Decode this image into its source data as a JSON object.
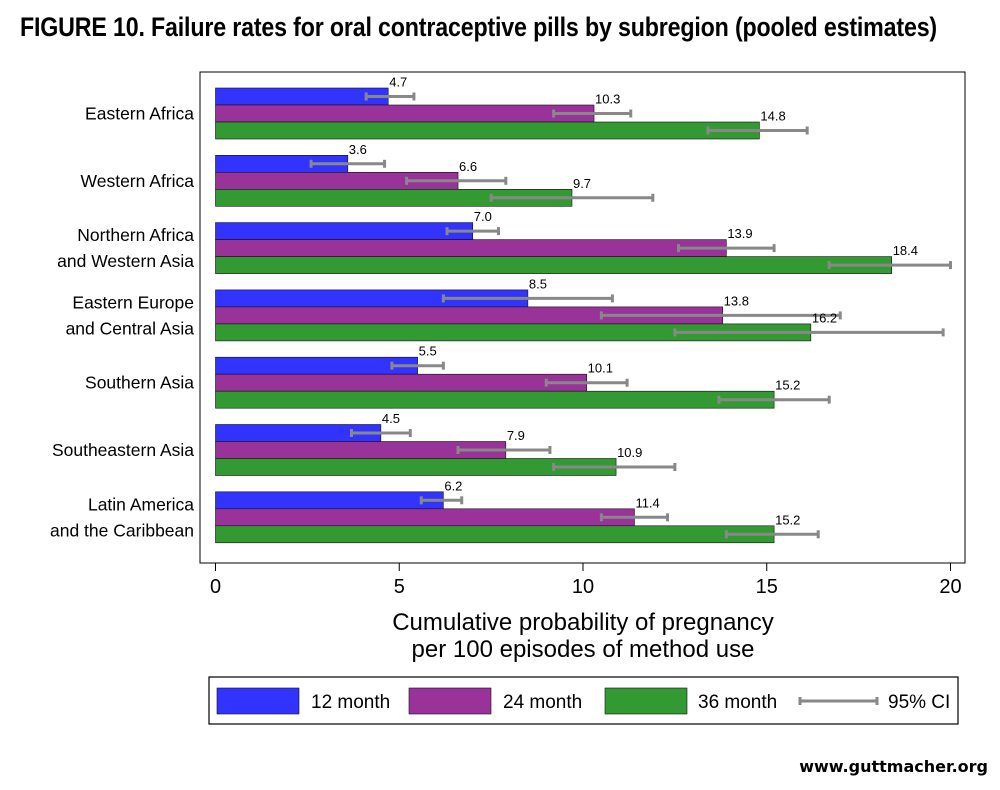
{
  "title": "FIGURE 10. Failure rates for oral contraceptive pills by subregion (pooled estimates)",
  "footer": "www.guttmacher.org",
  "chart_data": {
    "type": "bar",
    "orientation": "horizontal",
    "categories": [
      [
        "Eastern Africa"
      ],
      [
        "Western Africa"
      ],
      [
        "Northern Africa",
        "and Western Asia"
      ],
      [
        "Eastern Europe",
        "and Central Asia"
      ],
      [
        "Southern Asia"
      ],
      [
        "Southeastern Asia"
      ],
      [
        "Latin America",
        "and the Caribbean"
      ]
    ],
    "series": [
      {
        "name": "12 month",
        "color": "#3333ff",
        "values": [
          4.7,
          3.6,
          7.0,
          8.5,
          5.5,
          4.5,
          6.2
        ],
        "labels": [
          "4.7",
          "3.6",
          "7.0",
          "8.5",
          "5.5",
          "4.5",
          "6.2"
        ],
        "ci": [
          [
            4.1,
            5.4
          ],
          [
            2.6,
            4.6
          ],
          [
            6.3,
            7.7
          ],
          [
            6.2,
            10.8
          ],
          [
            4.8,
            6.2
          ],
          [
            3.7,
            5.3
          ],
          [
            5.6,
            6.7
          ]
        ]
      },
      {
        "name": "24 month",
        "color": "#993399",
        "values": [
          10.3,
          6.6,
          13.9,
          13.8,
          10.1,
          7.9,
          11.4
        ],
        "labels": [
          "10.3",
          "6.6",
          "13.9",
          "13.8",
          "10.1",
          "7.9",
          "11.4"
        ],
        "ci": [
          [
            9.2,
            11.3
          ],
          [
            5.2,
            7.9
          ],
          [
            12.6,
            15.2
          ],
          [
            10.5,
            17.0
          ],
          [
            9.0,
            11.2
          ],
          [
            6.6,
            9.1
          ],
          [
            10.5,
            12.3
          ]
        ]
      },
      {
        "name": "36 month",
        "color": "#339933",
        "values": [
          14.8,
          9.7,
          18.4,
          16.2,
          15.2,
          10.9,
          15.2
        ],
        "labels": [
          "14.8",
          "9.7",
          "18.4",
          "16.2",
          "15.2",
          "10.9",
          "15.2"
        ],
        "ci": [
          [
            13.4,
            16.1
          ],
          [
            7.5,
            11.9
          ],
          [
            16.7,
            20.0
          ],
          [
            12.5,
            19.8
          ],
          [
            13.7,
            16.7
          ],
          [
            9.2,
            12.5
          ],
          [
            13.9,
            16.4
          ]
        ]
      }
    ],
    "ci_legend": "95% CI",
    "ci_color": "#888888",
    "xticks": [
      0,
      5,
      10,
      15,
      20
    ],
    "xtick_labels": [
      "0",
      "5",
      "10",
      "15",
      "20"
    ],
    "xlim": [
      -0.3,
      20.4
    ],
    "xlabel": [
      "Cumulative probability of pregnancy",
      "per 100 episodes of method use"
    ],
    "grid": false,
    "legend_position": "bottom"
  }
}
